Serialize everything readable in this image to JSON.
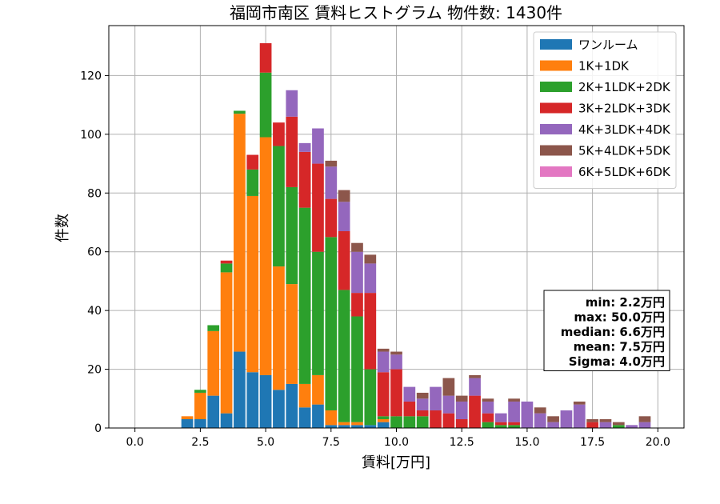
{
  "chart_data": {
    "type": "bar",
    "title": "福岡市南区 賃料ヒストグラム 物件数: 1430件",
    "xlabel": "賃料[万円]",
    "ylabel": "件数",
    "xlim": [
      -1,
      21
    ],
    "ylim": [
      0,
      137
    ],
    "xticks": [
      0.0,
      2.5,
      5.0,
      7.5,
      10.0,
      12.5,
      15.0,
      17.5,
      20.0
    ],
    "xtick_labels": [
      "0.0",
      "2.5",
      "5.0",
      "7.5",
      "10.0",
      "12.5",
      "15.0",
      "17.5",
      "20.0"
    ],
    "yticks": [
      0,
      20,
      40,
      60,
      80,
      100,
      120
    ],
    "ytick_labels": [
      "0",
      "20",
      "40",
      "60",
      "80",
      "100",
      "120"
    ],
    "grid": true,
    "stacked": true,
    "legend_position": "top-right",
    "bin_width": 0.5,
    "x": [
      2.0,
      2.5,
      3.0,
      3.5,
      4.0,
      4.5,
      5.0,
      5.5,
      6.0,
      6.5,
      7.0,
      7.5,
      8.0,
      8.5,
      9.0,
      9.5,
      10.0,
      10.5,
      11.0,
      11.5,
      12.0,
      12.5,
      13.0,
      13.5,
      14.0,
      14.5,
      15.0,
      15.5,
      16.0,
      16.5,
      17.0,
      17.5,
      18.0,
      18.5,
      19.0,
      19.5
    ],
    "series": [
      {
        "name": "ワンルーム",
        "color": "#1f77b4",
        "values": [
          3,
          3,
          11,
          5,
          26,
          19,
          18,
          13,
          15,
          7,
          8,
          1,
          1,
          1,
          1,
          2,
          0,
          0,
          0,
          0,
          0,
          0,
          0,
          0,
          0,
          0,
          0,
          0,
          0,
          0,
          0,
          0,
          0,
          0,
          0,
          0
        ]
      },
      {
        "name": "1K+1DK",
        "color": "#ff7f0e",
        "values": [
          1,
          9,
          22,
          48,
          81,
          60,
          81,
          42,
          34,
          8,
          10,
          5,
          1,
          1,
          0,
          1,
          0,
          0,
          0,
          0,
          0,
          0,
          0,
          0,
          0,
          0,
          0,
          0,
          0,
          0,
          0,
          0,
          0,
          0,
          0,
          0
        ]
      },
      {
        "name": "2K+1LDK+2DK",
        "color": "#2ca02c",
        "values": [
          0,
          1,
          2,
          3,
          1,
          9,
          22,
          41,
          33,
          60,
          42,
          59,
          45,
          36,
          19,
          1,
          4,
          4,
          4,
          0,
          0,
          0,
          0,
          2,
          1,
          1,
          0,
          0,
          0,
          0,
          0,
          0,
          0,
          1,
          0,
          0
        ]
      },
      {
        "name": "3K+2LDK+3DK",
        "color": "#d62728",
        "values": [
          0,
          0,
          0,
          1,
          0,
          5,
          10,
          8,
          24,
          19,
          30,
          13,
          20,
          8,
          26,
          15,
          16,
          5,
          2,
          6,
          5,
          3,
          11,
          3,
          1,
          1,
          0,
          0,
          0,
          0,
          0,
          2,
          0,
          0,
          0,
          0
        ]
      },
      {
        "name": "4K+3LDK+4DK",
        "color": "#9467bd",
        "values": [
          0,
          0,
          0,
          0,
          0,
          0,
          0,
          0,
          9,
          3,
          12,
          11,
          10,
          14,
          10,
          7,
          5,
          5,
          4,
          8,
          6,
          6,
          6,
          4,
          3,
          7,
          9,
          5,
          2,
          6,
          8,
          0,
          2,
          0,
          1,
          2
        ]
      },
      {
        "name": "5K+4LDK+5DK",
        "color": "#8c564b",
        "values": [
          0,
          0,
          0,
          0,
          0,
          0,
          0,
          0,
          0,
          0,
          0,
          2,
          4,
          3,
          3,
          1,
          1,
          0,
          2,
          0,
          6,
          2,
          1,
          1,
          0,
          1,
          0,
          2,
          2,
          0,
          1,
          1,
          1,
          1,
          0,
          2
        ]
      },
      {
        "name": "6K+5LDK+6DK",
        "color": "#e377c2",
        "values": [
          0,
          0,
          0,
          0,
          0,
          0,
          0,
          0,
          0,
          0,
          0,
          0,
          0,
          0,
          0,
          0,
          0,
          0,
          0,
          0,
          0,
          0,
          0,
          0,
          0,
          0,
          0,
          0,
          0,
          0,
          0,
          0,
          0,
          0,
          0,
          0
        ]
      }
    ],
    "stats_box": {
      "position": "bottom-right",
      "lines": [
        "min: 2.2万円",
        "max: 50.0万円",
        "median: 6.6万円",
        "mean: 7.5万円",
        "Sigma: 4.0万円"
      ]
    }
  }
}
